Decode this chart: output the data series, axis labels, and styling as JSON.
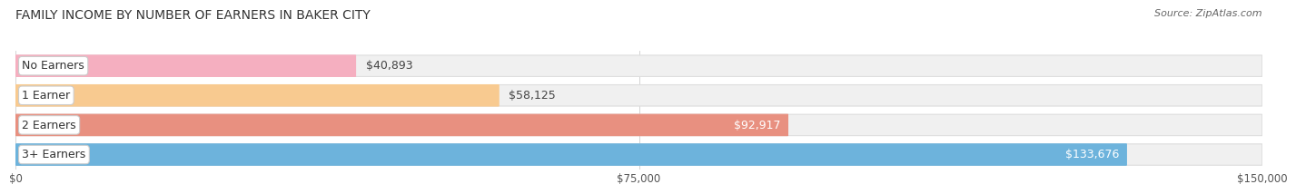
{
  "title": "FAMILY INCOME BY NUMBER OF EARNERS IN BAKER CITY",
  "source": "Source: ZipAtlas.com",
  "categories": [
    "No Earners",
    "1 Earner",
    "2 Earners",
    "3+ Earners"
  ],
  "values": [
    40893,
    58125,
    92917,
    133676
  ],
  "bar_colors": [
    "#f5afc0",
    "#f8ca90",
    "#e89080",
    "#6db3dc"
  ],
  "label_colors": [
    "#555555",
    "#555555",
    "#ffffff",
    "#ffffff"
  ],
  "value_label_inside": [
    false,
    false,
    true,
    true
  ],
  "x_ticks": [
    0,
    75000,
    150000
  ],
  "x_tick_labels": [
    "$0",
    "$75,000",
    "$150,000"
  ],
  "xlim": [
    0,
    150000
  ],
  "background_color": "#ffffff",
  "bar_background_color": "#f0f0f0",
  "bar_bg_edge_color": "#dddddd",
  "title_fontsize": 10,
  "source_fontsize": 8,
  "label_fontsize": 9,
  "category_fontsize": 9
}
